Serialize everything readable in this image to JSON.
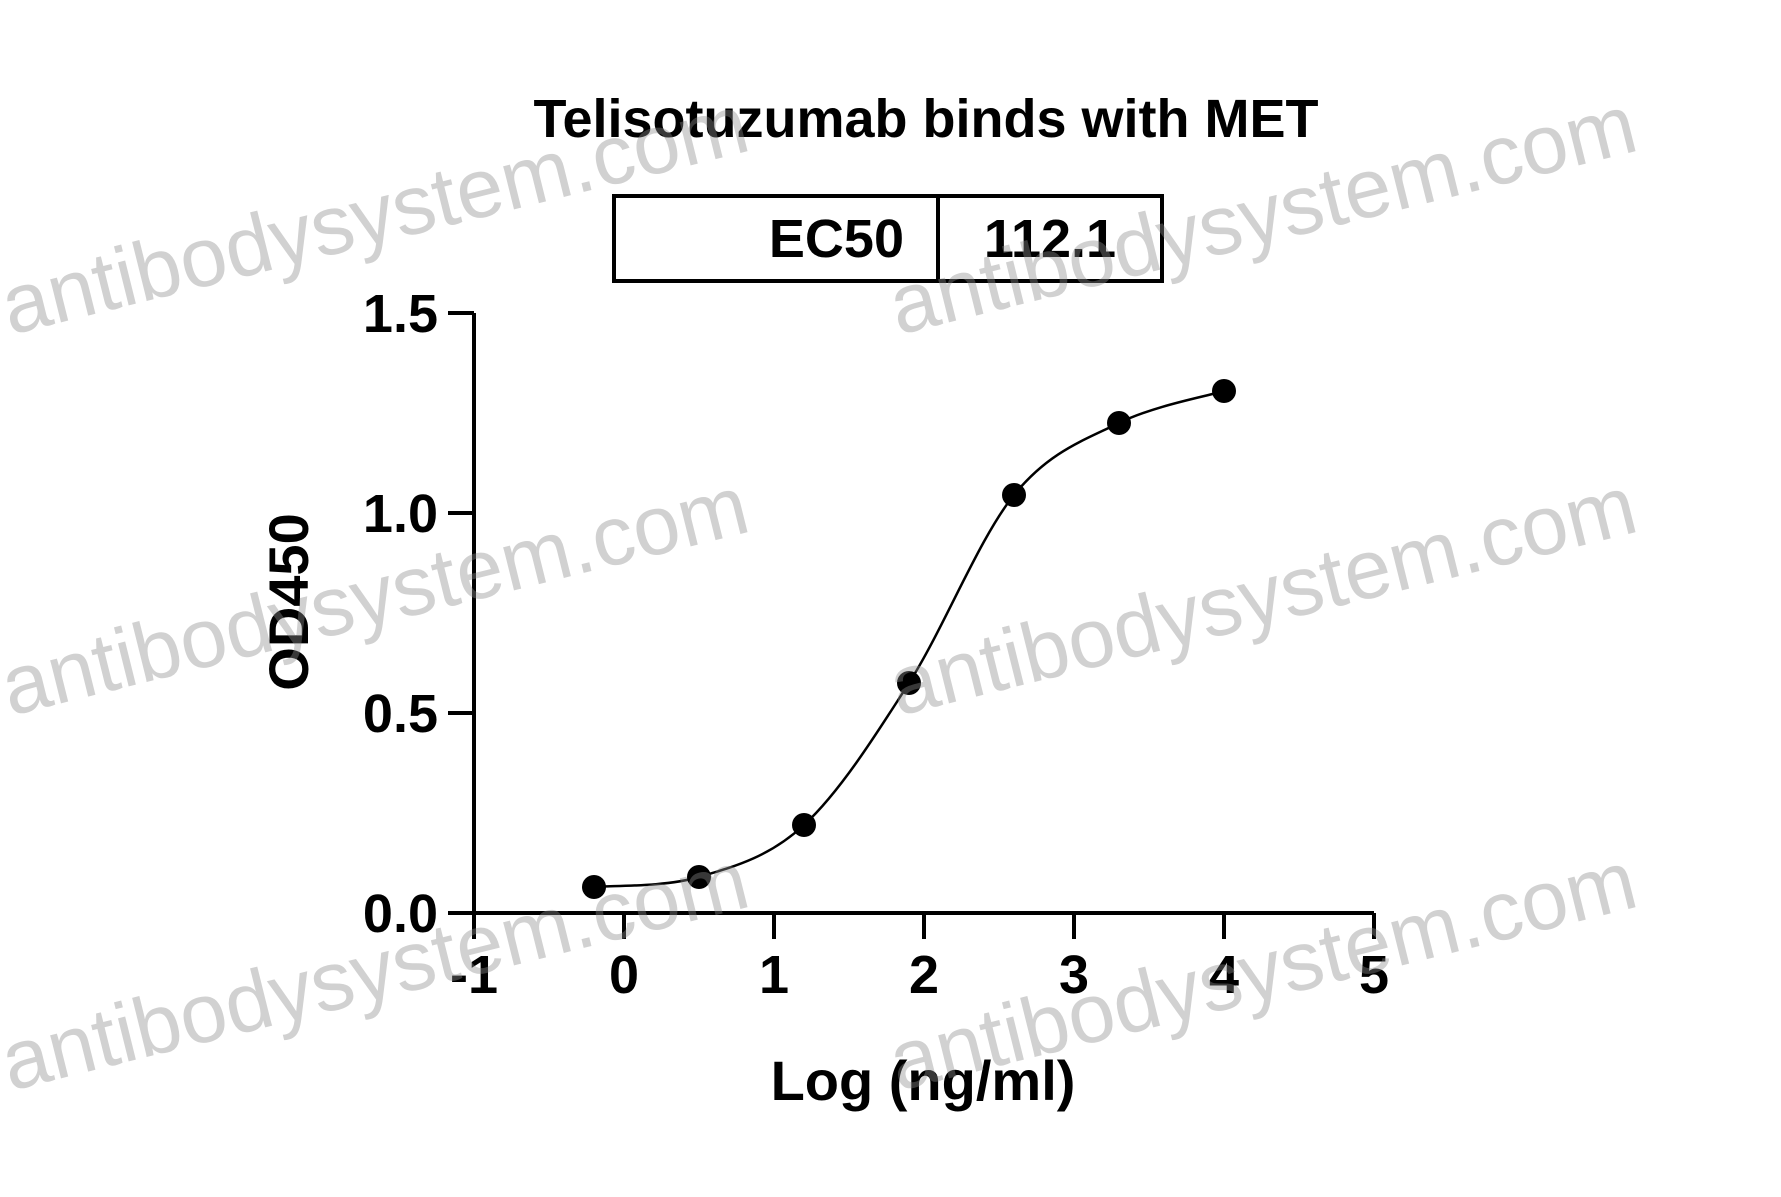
{
  "chart_data": {
    "type": "scatter",
    "title": "Telisotuzumab binds with MET",
    "xlabel": "Log (ng/ml)",
    "ylabel": "OD450",
    "table": {
      "label": "EC50",
      "value": 112.1
    },
    "x": [
      -0.2,
      0.5,
      1.2,
      1.9,
      2.6,
      3.3,
      4.0
    ],
    "values": [
      0.065,
      0.09,
      0.22,
      0.575,
      1.045,
      1.225,
      1.305
    ],
    "color": "#000000",
    "xlim": [
      -1,
      5
    ],
    "xticks": [
      -1,
      0,
      1,
      2,
      3,
      4,
      5
    ],
    "ylim": [
      0,
      1.5
    ],
    "yticks": [
      {
        "value": 0,
        "label": "0.0"
      },
      0.5,
      {
        "value": 1,
        "label": "1.0"
      },
      1.5
    ],
    "watermark": "antibodysystem.com"
  }
}
